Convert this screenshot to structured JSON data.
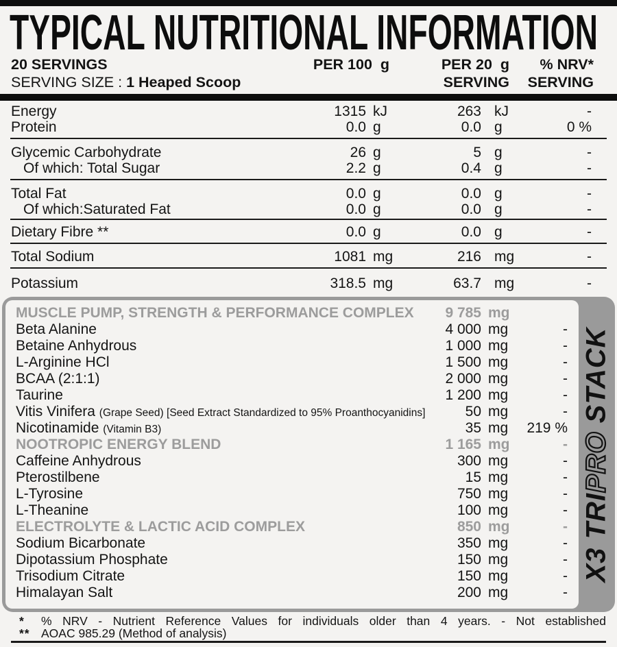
{
  "title": "TYPICAL NUTRITIONAL INFORMATION",
  "header": {
    "servings": "20 SERVINGS",
    "serving_size_label": "SERVING SIZE : ",
    "serving_size_value": "1 Heaped Scoop",
    "col_per100": "PER 100  g",
    "col_per20": "PER 20  g",
    "col_nrv": "% NRV*",
    "col_serving_per20": "SERVING",
    "col_serving_nrv": "SERVING"
  },
  "table": {
    "groups": [
      {
        "rows": [
          {
            "label": "Energy",
            "v100": "1315",
            "u100": "kJ",
            "v20": "263",
            "u20": "kJ",
            "nrv": "-"
          },
          {
            "label": "Protein",
            "v100": "0.0",
            "u100": "g",
            "v20": "0.0",
            "u20": "g",
            "nrv": "0 %"
          }
        ]
      },
      {
        "rows": [
          {
            "label": "Glycemic Carbohydrate",
            "v100": "26",
            "u100": "g",
            "v20": "5",
            "u20": "g",
            "nrv": "-"
          },
          {
            "label": "Of which: Total Sugar",
            "v100": "2.2",
            "u100": "g",
            "v20": "0.4",
            "u20": "g",
            "nrv": "-"
          }
        ]
      },
      {
        "rows": [
          {
            "label": "Total Fat",
            "v100": "0.0",
            "u100": "g",
            "v20": "0.0",
            "u20": "g",
            "nrv": "-"
          },
          {
            "label": "Of which:Saturated Fat",
            "v100": "0.0",
            "u100": "g",
            "v20": "0.0",
            "u20": "g",
            "nrv": "-"
          }
        ]
      },
      {
        "rows": [
          {
            "label": "Dietary Fibre **",
            "v100": "0.0",
            "u100": "g",
            "v20": "0.0",
            "u20": "g",
            "nrv": "-"
          }
        ]
      },
      {
        "rows": [
          {
            "label": "Total Sodium",
            "v100": "1081",
            "u100": "mg",
            "v20": "216",
            "u20": "mg",
            "nrv": "-"
          }
        ]
      },
      {
        "rows": [
          {
            "label": "Potassium",
            "v100": "318.5",
            "u100": "mg",
            "v20": "63.7",
            "u20": "mg",
            "nrv": "-"
          }
        ]
      }
    ]
  },
  "complex": {
    "rows": [
      {
        "label": "MUSCLE PUMP, STRENGTH & PERFORMANCE COMPLEX",
        "value": "9 785",
        "unit": "mg",
        "nrv": ""
      },
      {
        "label": "Beta Alanine",
        "value": "4 000",
        "unit": "mg",
        "nrv": "-"
      },
      {
        "label": "Betaine Anhydrous",
        "value": "1 000",
        "unit": "mg",
        "nrv": "-"
      },
      {
        "label": "L-Arginine HCl",
        "value": "1 500",
        "unit": "mg",
        "nrv": "-"
      },
      {
        "label": "BCAA (2:1:1)",
        "value": "2 000",
        "unit": "mg",
        "nrv": "-"
      },
      {
        "label": "Taurine",
        "value": "1 200",
        "unit": "mg",
        "nrv": "-"
      },
      {
        "label": "Vitis Vinifera ",
        "small": "(Grape Seed) [Seed Extract Standardized to 95% Proanthocyanidins]",
        "value": "50",
        "unit": "mg",
        "nrv": "-"
      },
      {
        "label": "Nicotinamide ",
        "small": "(Vitamin B3)",
        "value": "35",
        "unit": "mg",
        "nrv": "219 %"
      },
      {
        "label": "NOOTROPIC ENERGY BLEND",
        "value": "1 165",
        "unit": "mg",
        "nrv": "-"
      },
      {
        "label": "Caffeine Anhydrous",
        "value": "300",
        "unit": "mg",
        "nrv": "-"
      },
      {
        "label": "Pterostilbene",
        "value": "15",
        "unit": "mg",
        "nrv": "-"
      },
      {
        "label": "L-Tyrosine",
        "value": "750",
        "unit": "mg",
        "nrv": "-"
      },
      {
        "label": "L-Theanine",
        "value": "100",
        "unit": "mg",
        "nrv": "-"
      },
      {
        "label": "ELECTROLYTE & LACTIC ACID COMPLEX",
        "value": "850",
        "unit": "mg",
        "nrv": "-"
      },
      {
        "label": "Sodium Bicarbonate",
        "value": "350",
        "unit": "mg",
        "nrv": "-"
      },
      {
        "label": "Dipotassium Phosphate",
        "value": "150",
        "unit": "mg",
        "nrv": "-"
      },
      {
        "label": "Trisodium Citrate",
        "value": "150",
        "unit": "mg",
        "nrv": "-"
      },
      {
        "label": "Himalayan Salt",
        "value": "200",
        "unit": "mg",
        "nrv": "-"
      }
    ]
  },
  "brand": {
    "part_solid1": "X3 TRI",
    "part_outline": "PRO",
    "part_solid2": "STACK"
  },
  "footnotes": {
    "mark1": "*",
    "text1": "% NRV - Nutrient Reference Values for individuals older than 4 years. - Not established",
    "mark2": "**",
    "text2": "AOAC 985.29 (Method of analysis)"
  },
  "colors": {
    "accent_gray": "#9a9a9a",
    "ink": "#0e0e0e",
    "background": "#f4f3f1"
  }
}
